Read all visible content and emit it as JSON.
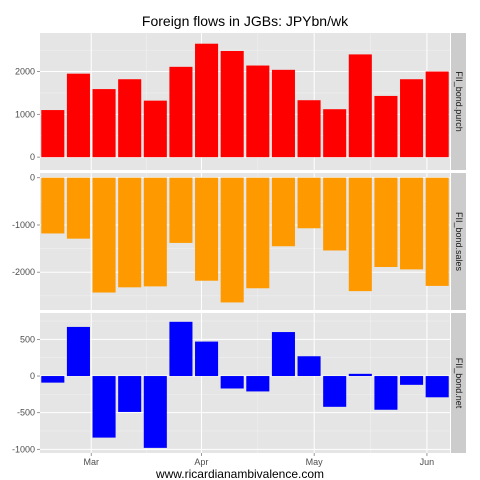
{
  "chart_data": {
    "type": "bar",
    "title": "Foreign flows in JGBs: JPYbn/wk",
    "caption": "www.ricardianambivalence.com",
    "x_tick_labels": [
      "Mar",
      "Apr",
      "May",
      "Jun"
    ],
    "x_tick_positions": [
      1.5,
      5.8,
      10.2,
      14.6
    ],
    "n_bars": 16,
    "grid": true,
    "panels": [
      {
        "name": "FII_bond.purch",
        "color": "#ff0000",
        "ylim": [
          -300,
          2900
        ],
        "yticks": [
          0,
          1000,
          2000
        ],
        "ytick_labels": [
          "0",
          "1000",
          "2000"
        ],
        "values": [
          1100,
          1950,
          1590,
          1820,
          1320,
          2110,
          2650,
          2480,
          2140,
          2040,
          1330,
          1120,
          2400,
          1430,
          1820,
          2000
        ]
      },
      {
        "name": "FII_bond.sales",
        "color": "#ff9900",
        "ylim": [
          -2800,
          100
        ],
        "yticks": [
          0,
          -1000,
          -2000
        ],
        "ytick_labels": [
          "0",
          "-1000",
          "-2000"
        ],
        "values": [
          -1180,
          -1290,
          -2430,
          -2320,
          -2300,
          -1380,
          -2180,
          -2640,
          -2340,
          -1450,
          -1070,
          -1540,
          -2400,
          -1890,
          -1940,
          -2290
        ]
      },
      {
        "name": "FII_bond.net",
        "color": "#0000ff",
        "ylim": [
          -1050,
          860
        ],
        "yticks": [
          500,
          0,
          -500,
          -1000
        ],
        "ytick_labels": [
          "500",
          "0",
          "-500",
          "-1000"
        ],
        "values": [
          -90,
          670,
          -840,
          -490,
          -980,
          740,
          470,
          -170,
          -210,
          600,
          270,
          -420,
          30,
          -460,
          -120,
          -290
        ]
      }
    ]
  }
}
